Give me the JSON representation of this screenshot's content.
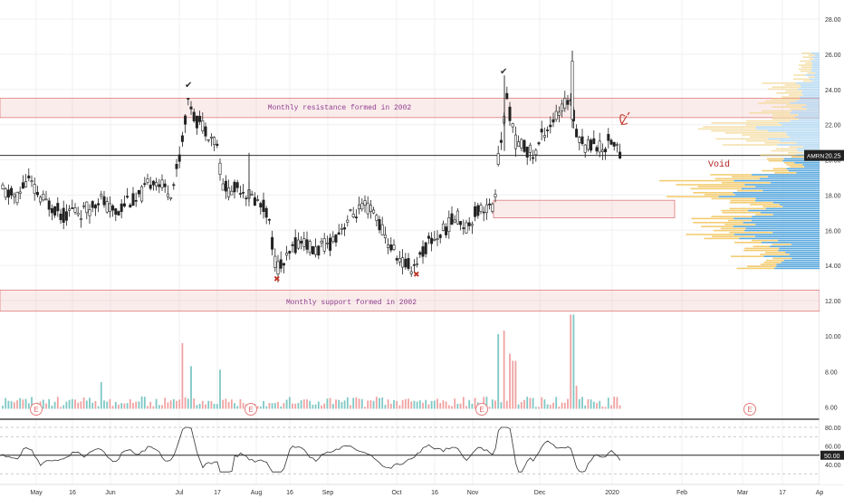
{
  "chart_data": {
    "type": "candlestick",
    "symbol": "AMRN",
    "last_price": 20.25,
    "last_price_label": "20.25",
    "price_ylim": [
      11,
      29
    ],
    "price_ticks": [
      12,
      14,
      16,
      18,
      20,
      22,
      24,
      26,
      28
    ],
    "price_tick_labels": [
      "12.00",
      "14.00",
      "16.00",
      "18.00",
      "20.00",
      "22.00",
      "24.00",
      "26.00",
      "28.00"
    ],
    "secondary_ticks": [
      6,
      8,
      10
    ],
    "secondary_tick_labels": [
      "6.00",
      "8.00",
      "10.00"
    ],
    "rsi_ticks": [
      40,
      60,
      80
    ],
    "rsi_tick_labels": [
      "40.00",
      "60.00",
      "80.00"
    ],
    "rsi_level_label": "50.00",
    "x_tick_labels": [
      "May",
      "16",
      "Jun",
      "Jul",
      "17",
      "Aug",
      "16",
      "Sep",
      "Oct",
      "16",
      "Nov",
      "Dec",
      "2020",
      "Feb",
      "Mar",
      "17",
      "Ap"
    ],
    "zones": [
      {
        "label": "Monthly resistance formed in 2002",
        "low": 22.4,
        "high": 23.5
      },
      {
        "label": "Monthly support formed in 2002",
        "low": 11.4,
        "high": 12.6
      },
      {
        "label": "",
        "low": 16.7,
        "high": 17.7
      }
    ],
    "void_label": "Void",
    "earnings_marker": "E",
    "price_path": [
      [
        0,
        18.3
      ],
      [
        10,
        18.0
      ],
      [
        20,
        17.9
      ],
      [
        30,
        19.0
      ],
      [
        40,
        18.1
      ],
      [
        50,
        17.6
      ],
      [
        60,
        17.3
      ],
      [
        70,
        16.8
      ],
      [
        80,
        17.2
      ],
      [
        90,
        17.0
      ],
      [
        100,
        17.3
      ],
      [
        110,
        17.9
      ],
      [
        120,
        17.2
      ],
      [
        130,
        17.0
      ],
      [
        140,
        17.8
      ],
      [
        150,
        17.6
      ],
      [
        160,
        18.3
      ],
      [
        170,
        19.0
      ],
      [
        180,
        18.4
      ],
      [
        190,
        18.2
      ],
      [
        200,
        20.6
      ],
      [
        205,
        22.6
      ],
      [
        210,
        23.4
      ],
      [
        215,
        22.3
      ],
      [
        220,
        22.2
      ],
      [
        230,
        21.6
      ],
      [
        240,
        20.9
      ],
      [
        245,
        18.6
      ],
      [
        255,
        18.2
      ],
      [
        265,
        18.5
      ],
      [
        275,
        18.0
      ],
      [
        285,
        17.6
      ],
      [
        295,
        17.1
      ],
      [
        305,
        13.9
      ],
      [
        315,
        14.1
      ],
      [
        325,
        15.1
      ],
      [
        335,
        15.5
      ],
      [
        345,
        14.8
      ],
      [
        355,
        15.0
      ],
      [
        365,
        15.3
      ],
      [
        375,
        16.0
      ],
      [
        385,
        16.7
      ],
      [
        395,
        17.1
      ],
      [
        405,
        17.3
      ],
      [
        415,
        16.9
      ],
      [
        425,
        15.6
      ],
      [
        435,
        14.8
      ],
      [
        445,
        14.1
      ],
      [
        455,
        13.9
      ],
      [
        465,
        14.6
      ],
      [
        475,
        15.4
      ],
      [
        485,
        15.7
      ],
      [
        495,
        16.3
      ],
      [
        505,
        16.8
      ],
      [
        515,
        16.2
      ],
      [
        525,
        17.0
      ],
      [
        535,
        17.4
      ],
      [
        545,
        17.1
      ],
      [
        550,
        20.0
      ],
      [
        560,
        23.4
      ],
      [
        570,
        20.9
      ],
      [
        580,
        20.7
      ],
      [
        590,
        20.2
      ],
      [
        600,
        21.6
      ],
      [
        610,
        22.2
      ],
      [
        620,
        22.8
      ],
      [
        630,
        23.6
      ],
      [
        635,
        21.9
      ],
      [
        645,
        20.8
      ],
      [
        655,
        21.0
      ],
      [
        665,
        20.6
      ],
      [
        675,
        21.2
      ],
      [
        685,
        20.25
      ]
    ]
  },
  "markers": {
    "check": "✔",
    "cross": "✖"
  }
}
